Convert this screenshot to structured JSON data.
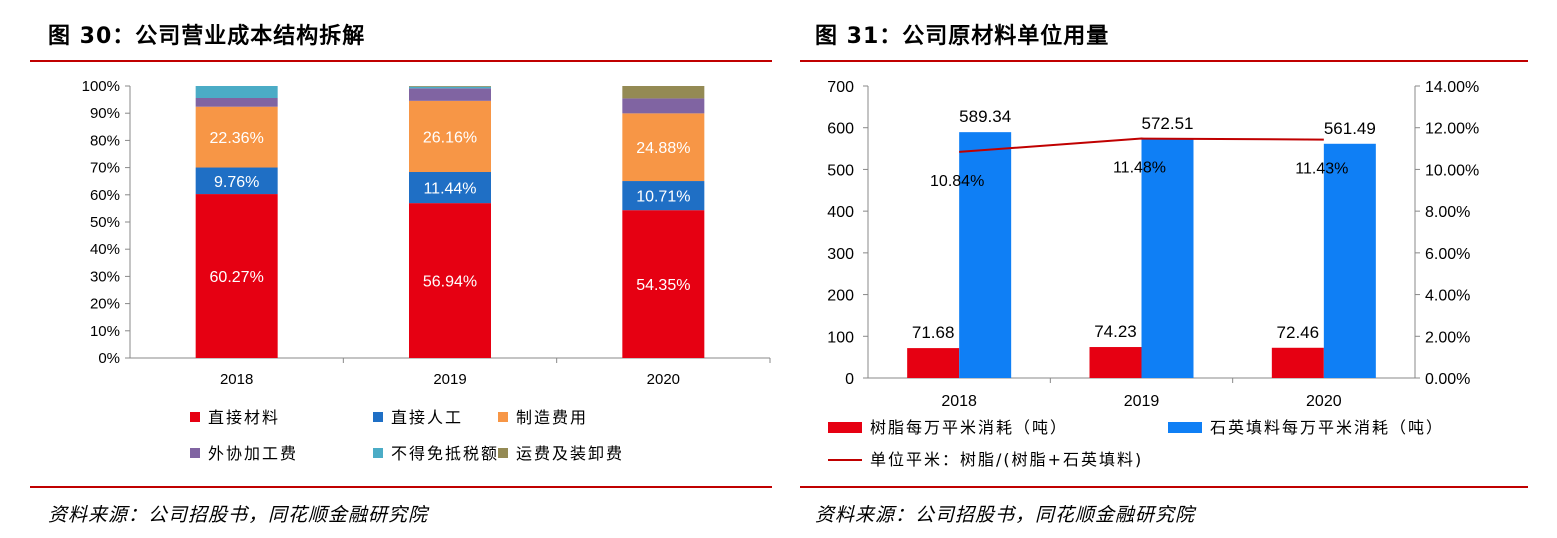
{
  "left": {
    "title": "图 30：公司营业成本结构拆解",
    "source": "资料来源：公司招股书，同花顺金融研究院"
  },
  "right": {
    "title": "图 31：公司原材料单位用量",
    "source": "资料来源：公司招股书，同花顺金融研究院"
  },
  "colors": {
    "rule": "#c00000",
    "red": "#e60012",
    "blue": "#1f6fc5",
    "orange": "#f79646",
    "purple": "#8064a2",
    "teal": "#4bacc6",
    "olive": "#948a54",
    "bright_blue": "#0f7ff5",
    "line": "#c00000"
  },
  "chart_data": [
    {
      "type": "bar",
      "stacked": true,
      "categories": [
        "2018",
        "2019",
        "2020"
      ],
      "y_tick_labels": [
        "0%",
        "10%",
        "20%",
        "30%",
        "40%",
        "50%",
        "60%",
        "70%",
        "80%",
        "90%",
        "100%"
      ],
      "ylim": [
        0,
        100
      ],
      "series": [
        {
          "name": "直接材料",
          "values": [
            60.27,
            56.94,
            54.35
          ],
          "labels": [
            "60.27%",
            "56.94%",
            "54.35%"
          ],
          "color": "#e60012"
        },
        {
          "name": "直接人工",
          "values": [
            9.76,
            11.44,
            10.71
          ],
          "labels": [
            "9.76%",
            "11.44%",
            "10.71%"
          ],
          "color": "#1f6fc5"
        },
        {
          "name": "制造费用",
          "values": [
            22.36,
            26.16,
            24.88
          ],
          "labels": [
            "22.36%",
            "26.16%",
            "24.88%"
          ],
          "color": "#f79646"
        },
        {
          "name": "外协加工费",
          "values": [
            3.2,
            4.6,
            5.5
          ],
          "color": "#8064a2"
        },
        {
          "name": "不得免抵税额",
          "values": [
            4.41,
            0.6,
            0.0
          ],
          "color": "#4bacc6"
        },
        {
          "name": "运费及装卸费",
          "values": [
            0.0,
            0.26,
            4.56
          ],
          "color": "#948a54"
        }
      ],
      "legend": "bottom"
    },
    {
      "type": "bar",
      "categories": [
        "2018",
        "2019",
        "2020"
      ],
      "y_tick_labels": [
        "0",
        "100",
        "200",
        "300",
        "400",
        "500",
        "600",
        "700"
      ],
      "ylim": [
        0,
        700
      ],
      "y2_tick_labels": [
        "0.00%",
        "2.00%",
        "4.00%",
        "6.00%",
        "8.00%",
        "10.00%",
        "12.00%",
        "14.00%"
      ],
      "y2lim": [
        0,
        14
      ],
      "series": [
        {
          "name": "树脂每万平米消耗（吨）",
          "type": "bar",
          "values": [
            71.68,
            74.23,
            72.46
          ],
          "labels": [
            "71.68",
            "74.23",
            "72.46"
          ],
          "color": "#e60012"
        },
        {
          "name": "石英填料每万平米消耗（吨）",
          "type": "bar",
          "values": [
            589.34,
            572.51,
            561.49
          ],
          "labels": [
            "589.34",
            "572.51",
            "561.49"
          ],
          "color": "#0f7ff5"
        },
        {
          "name": "单位平米：树脂/(树脂+石英填料)",
          "type": "line",
          "axis": "right",
          "values": [
            10.84,
            11.48,
            11.43
          ],
          "labels": [
            "10.84%",
            "11.48%",
            "11.43%"
          ],
          "color": "#c00000"
        }
      ],
      "legend": "bottom"
    }
  ]
}
